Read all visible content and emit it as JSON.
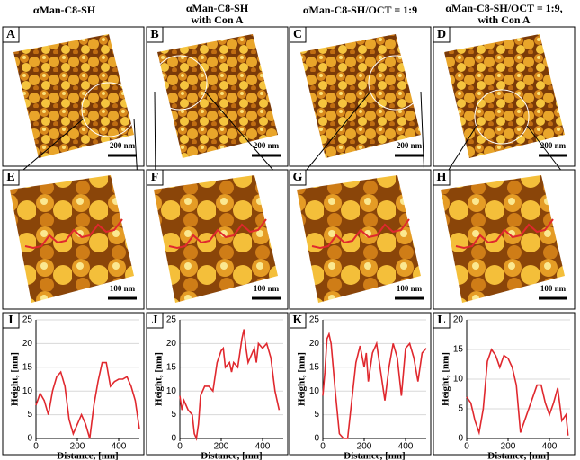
{
  "columns": [
    {
      "lines": [
        "αMan-C8-SH"
      ]
    },
    {
      "lines": [
        "αMan-C8-SH",
        "with Con A"
      ]
    },
    {
      "lines": [
        "αMan-C8-SH/OCT = 1:9"
      ]
    },
    {
      "lines": [
        "αMan-C8-SH/OCT = 1:9,",
        "with Con A"
      ]
    }
  ],
  "images": [
    {
      "letter": "A",
      "scale": "200 nm"
    },
    {
      "letter": "B",
      "scale": "200 nm"
    },
    {
      "letter": "C",
      "scale": "200 nm"
    },
    {
      "letter": "D",
      "scale": "200 nm"
    },
    {
      "letter": "E",
      "scale": "100 nm"
    },
    {
      "letter": "F",
      "scale": "100 nm"
    },
    {
      "letter": "G",
      "scale": "100 nm"
    },
    {
      "letter": "H",
      "scale": "100 nm"
    }
  ],
  "chart_data": [
    {
      "type": "line",
      "letter": "I",
      "x_label": "Distance, [nm]",
      "y_label": "Height, [nm]",
      "color": "#e0282e",
      "xlim": [
        0,
        500
      ],
      "xticks": [
        0,
        200,
        400
      ],
      "ylim": [
        0,
        25
      ],
      "yticks": [
        0,
        5,
        10,
        15,
        20,
        25
      ],
      "x": [
        0,
        20,
        40,
        60,
        80,
        100,
        120,
        140,
        160,
        180,
        200,
        220,
        240,
        260,
        280,
        300,
        320,
        340,
        360,
        380,
        400,
        420,
        440,
        460,
        480,
        500
      ],
      "values": [
        7,
        9.5,
        8,
        5,
        10,
        13,
        14,
        11,
        4,
        1,
        3,
        5,
        3,
        0,
        7,
        12,
        16,
        16,
        11,
        12,
        12.5,
        12.5,
        13,
        11,
        8,
        2
      ]
    },
    {
      "type": "line",
      "letter": "J",
      "x_label": "Distance, [nm]",
      "y_label": "Height, [nm]",
      "color": "#e0282e",
      "xlim": [
        0,
        500
      ],
      "xticks": [
        0,
        200,
        400
      ],
      "ylim": [
        0,
        25
      ],
      "yticks": [
        0,
        5,
        10,
        15,
        20,
        25
      ],
      "x": [
        0,
        10,
        20,
        40,
        60,
        70,
        80,
        90,
        100,
        120,
        140,
        160,
        180,
        200,
        210,
        220,
        240,
        250,
        260,
        280,
        290,
        300,
        310,
        320,
        330,
        340,
        360,
        370,
        380,
        400,
        420,
        440,
        460,
        480
      ],
      "values": [
        9,
        6,
        8,
        6,
        5,
        1,
        0,
        3,
        9,
        11,
        11,
        10,
        16,
        18.5,
        19,
        15,
        16,
        14,
        16,
        15,
        18,
        21,
        23,
        19,
        16,
        17,
        19,
        16,
        20,
        19,
        20,
        17,
        10,
        6
      ]
    },
    {
      "type": "line",
      "letter": "K",
      "x_label": "Distance, [nm]",
      "y_label": "Height, [nm]",
      "color": "#e0282e",
      "xlim": [
        0,
        500
      ],
      "xticks": [
        0,
        200,
        400
      ],
      "ylim": [
        0,
        25
      ],
      "yticks": [
        0,
        5,
        10,
        15,
        20,
        25
      ],
      "x": [
        0,
        10,
        20,
        30,
        40,
        60,
        80,
        100,
        120,
        140,
        160,
        180,
        200,
        210,
        220,
        240,
        260,
        280,
        300,
        320,
        340,
        360,
        380,
        400,
        420,
        440,
        460,
        480,
        500
      ],
      "values": [
        9,
        14,
        21,
        22,
        20,
        10,
        1,
        0,
        0,
        8,
        16,
        19.5,
        15,
        18,
        12,
        18,
        20,
        14,
        8,
        15,
        20,
        17,
        9,
        19,
        20,
        17,
        12,
        18,
        19
      ]
    },
    {
      "type": "line",
      "letter": "L",
      "x_label": "Distance, [nm]",
      "y_label": "Height, [nm]",
      "color": "#e0282e",
      "xlim": [
        0,
        500
      ],
      "xticks": [
        0,
        200,
        400
      ],
      "ylim": [
        0,
        20
      ],
      "yticks": [
        0,
        5,
        10,
        15,
        20
      ],
      "x": [
        0,
        20,
        40,
        60,
        80,
        100,
        120,
        140,
        160,
        180,
        200,
        220,
        240,
        260,
        280,
        300,
        320,
        340,
        360,
        380,
        400,
        420,
        440,
        460,
        480,
        490
      ],
      "values": [
        7,
        6,
        3,
        1,
        5,
        13,
        15,
        14,
        12,
        14,
        13.5,
        12,
        9,
        1,
        3,
        5,
        7,
        9,
        9,
        6,
        4,
        6,
        8.5,
        3,
        4,
        0.5
      ]
    }
  ]
}
